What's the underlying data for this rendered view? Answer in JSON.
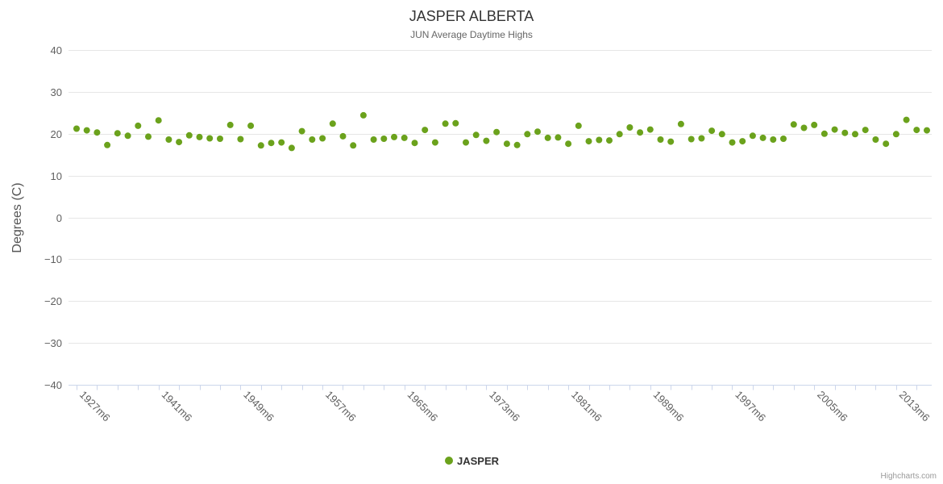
{
  "credits": "Highcharts.com",
  "chart_data": {
    "type": "scatter",
    "title": "JASPER ALBERTA",
    "subtitle": "JUN Average Daytime Highs",
    "xlabel": "",
    "ylabel": "Degrees (C)",
    "ylim": [
      -40,
      40
    ],
    "y_ticks": [
      40,
      30,
      20,
      10,
      0,
      -10,
      -20,
      -30,
      -40
    ],
    "grid": true,
    "legend_position": "bottom-center",
    "background_color": "#ffffff",
    "gridline_color": "#e6e6e6",
    "axis_line_color": "#ccd6eb",
    "categories": [
      "1927m6",
      "1928m6",
      "1929m6",
      "1930m6",
      "1934m6",
      "1936m6",
      "1938m6",
      "1940m6",
      "1941m6",
      "1942m6",
      "1943m6",
      "1944m6",
      "1945m6",
      "1946m6",
      "1947m6",
      "1948m6",
      "1949m6",
      "1950m6",
      "1951m6",
      "1952m6",
      "1953m6",
      "1954m6",
      "1955m6",
      "1956m6",
      "1957m6",
      "1958m6",
      "1959m6",
      "1960m6",
      "1961m6",
      "1962m6",
      "1963m6",
      "1964m6",
      "1965m6",
      "1966m6",
      "1967m6",
      "1968m6",
      "1969m6",
      "1970m6",
      "1971m6",
      "1972m6",
      "1973m6",
      "1974m6",
      "1975m6",
      "1976m6",
      "1977m6",
      "1978m6",
      "1979m6",
      "1980m6",
      "1981m6",
      "1982m6",
      "1983m6",
      "1984m6",
      "1985m6",
      "1986m6",
      "1987m6",
      "1988m6",
      "1989m6",
      "1990m6",
      "1991m6",
      "1992m6",
      "1993m6",
      "1994m6",
      "1995m6",
      "1996m6",
      "1997m6",
      "1998m6",
      "1999m6",
      "2000m6",
      "2001m6",
      "2002m6",
      "2003m6",
      "2004m6",
      "2005m6",
      "2006m6",
      "2007m6",
      "2008m6",
      "2009m6",
      "2010m6",
      "2011m6",
      "2012m6",
      "2013m6",
      "2014m6",
      "2015m6",
      "2016m6"
    ],
    "x_tick_indices": [
      0,
      8,
      16,
      24,
      32,
      40,
      48,
      56,
      64,
      72,
      80
    ],
    "x_tick_labels": [
      "1927m6",
      "1941m6",
      "1949m6",
      "1957m6",
      "1965m6",
      "1973m6",
      "1981m6",
      "1989m6",
      "1997m6",
      "2005m6",
      "2013m6"
    ],
    "series": [
      {
        "name": "JASPER",
        "color": "#6ba21c",
        "values": [
          21.2,
          20.8,
          20.3,
          17.3,
          20.1,
          19.5,
          21.9,
          19.3,
          23.2,
          18.6,
          18.0,
          19.6,
          19.2,
          18.9,
          18.8,
          22.1,
          18.7,
          21.9,
          17.2,
          17.8,
          17.9,
          16.6,
          20.6,
          18.6,
          18.9,
          22.4,
          19.4,
          17.2,
          24.4,
          18.6,
          18.8,
          19.2,
          19.0,
          17.8,
          20.9,
          17.9,
          22.4,
          22.5,
          17.9,
          19.7,
          18.3,
          20.4,
          17.6,
          17.3,
          19.9,
          20.5,
          19.0,
          19.1,
          17.6,
          21.9,
          18.2,
          18.5,
          18.4,
          19.9,
          21.5,
          20.3,
          21.0,
          18.6,
          18.1,
          22.3,
          18.7,
          18.9,
          20.7,
          19.9,
          17.9,
          18.2,
          19.5,
          19.0,
          18.6,
          18.8,
          22.2,
          21.4,
          22.1,
          20.0,
          21.0,
          20.2,
          19.9,
          20.9,
          18.6,
          17.6,
          19.9,
          23.3,
          20.9,
          20.8
        ]
      }
    ]
  }
}
